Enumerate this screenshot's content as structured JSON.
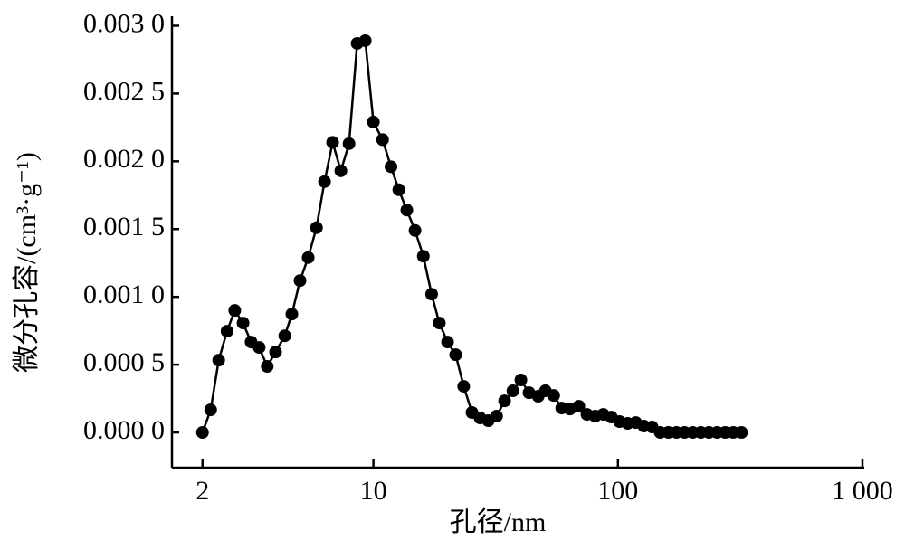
{
  "chart_data": {
    "type": "line",
    "x_label": "孔径/nm",
    "y_label": "微分孔容/(cm³·g⁻¹)",
    "xscale": "log",
    "xlim": [
      1.5,
      1000
    ],
    "xticks": [
      2,
      10,
      100,
      {
        "value": 1000,
        "label": "1 000"
      }
    ],
    "ylim": [
      -0.00026,
      0.00307
    ],
    "yticks": [
      {
        "value": 0,
        "label": "0.000 0"
      },
      {
        "value": 0.0005,
        "label": "0.000 5"
      },
      {
        "value": 0.001,
        "label": "0.001 0"
      },
      {
        "value": 0.0015,
        "label": "0.001 5"
      },
      {
        "value": 0.002,
        "label": "0.002 0"
      },
      {
        "value": 0.0025,
        "label": "0.002 5"
      },
      {
        "value": 0.003,
        "label": "0.003 0"
      }
    ],
    "grid": false,
    "x": [
      2.0,
      2.16,
      2.33,
      2.52,
      2.71,
      2.93,
      3.16,
      3.41,
      3.68,
      3.98,
      4.34,
      4.64,
      5.01,
      5.41,
      5.85,
      6.31,
      6.81,
      7.36,
      7.95,
      8.58,
      9.26,
      10.0,
      10.9,
      11.8,
      12.7,
      13.7,
      14.8,
      16.0,
      17.3,
      18.6,
      20.1,
      21.7,
      23.4,
      25.3,
      27.3,
      29.5,
      31.9,
      34.4,
      37.2,
      40.1,
      43.3,
      47.2,
      50.5,
      54.6,
      58.9,
      63.6,
      69.2,
      74.7,
      80.7,
      87.1,
      94.0,
      101.5,
      109.6,
      118.3,
      127.7,
      137.9,
      148.9,
      160.7,
      173.5,
      187.3,
      202.2,
      218.3,
      235.7,
      254.5,
      274.7,
      296.6,
      320.2
    ],
    "series": [
      {
        "color": "#000000",
        "values": [
          0.0,
          0.000167,
          0.000533,
          0.000747,
          0.0009,
          0.000807,
          0.000667,
          0.000627,
          0.000487,
          0.000593,
          0.000713,
          0.000873,
          0.00112,
          0.00129,
          0.00151,
          0.00185,
          0.00214,
          0.00193,
          0.00213,
          0.00287,
          0.00289,
          0.00229,
          0.00216,
          0.00196,
          0.00179,
          0.00164,
          0.00149,
          0.0013,
          0.00102,
          0.000807,
          0.000667,
          0.000573,
          0.00034,
          0.000147,
          0.000107,
          8.7e-05,
          0.00012,
          0.000233,
          0.000307,
          0.000387,
          0.000293,
          0.000267,
          0.000307,
          0.000273,
          0.00018,
          0.000173,
          0.000193,
          0.000133,
          0.00012,
          0.000133,
          0.000113,
          8e-05,
          6.7e-05,
          7.3e-05,
          4.7e-05,
          4e-05,
          0.0,
          0.0,
          0.0,
          0.0,
          0.0,
          0.0,
          0.0,
          0.0,
          0.0,
          0.0,
          0.0
        ]
      }
    ]
  }
}
